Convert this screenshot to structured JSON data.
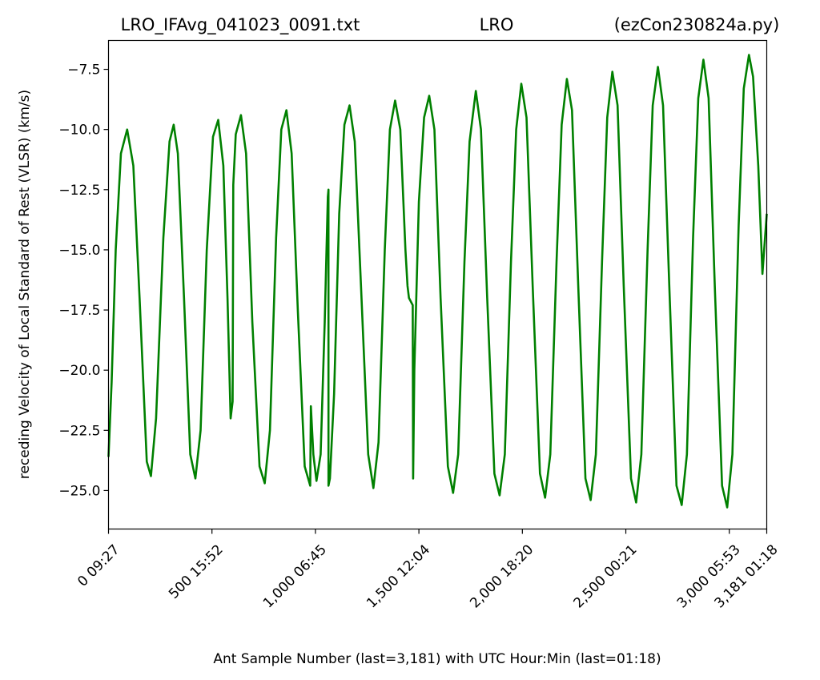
{
  "chart_data": {
    "type": "line",
    "title_left": "LRO_IFAvg_041023_0091.txt",
    "title_center": "LRO",
    "title_right": "(ezCon230824a.py)",
    "xlabel": "Ant Sample Number (last=3,181) with UTC Hour:Min (last=01:18)",
    "ylabel": "receding Velocity of Local Standard of Rest (VLSR) (km/s)",
    "xlim": [
      0,
      3181
    ],
    "ylim": [
      -26.6,
      -6.3
    ],
    "grid": false,
    "line_color": "#008000",
    "yticks": [
      {
        "value": -7.5,
        "label": "−7.5"
      },
      {
        "value": -10.0,
        "label": "−10.0"
      },
      {
        "value": -12.5,
        "label": "−12.5"
      },
      {
        "value": -15.0,
        "label": "−15.0"
      },
      {
        "value": -17.5,
        "label": "−17.5"
      },
      {
        "value": -20.0,
        "label": "−20.0"
      },
      {
        "value": -22.5,
        "label": "−22.5"
      },
      {
        "value": -25.0,
        "label": "−25.0"
      }
    ],
    "xticks": [
      {
        "value": 0,
        "label": "0  09:27"
      },
      {
        "value": 500,
        "label": "500  15:52"
      },
      {
        "value": 1000,
        "label": "1,000  06:45"
      },
      {
        "value": 1500,
        "label": "1,500  12:04"
      },
      {
        "value": 2000,
        "label": "2,000  18:20"
      },
      {
        "value": 2500,
        "label": "2,500  00:21"
      },
      {
        "value": 3000,
        "label": "3,000  05:53"
      },
      {
        "value": 3181,
        "label": "3,181  01:18"
      }
    ],
    "series": [
      {
        "values": [
          [
            0,
            -23.6
          ],
          [
            15,
            -20.5
          ],
          [
            35,
            -15.0
          ],
          [
            60,
            -11.0
          ],
          [
            90,
            -10.0
          ],
          [
            120,
            -11.5
          ],
          [
            150,
            -17.0
          ],
          [
            185,
            -23.8
          ],
          [
            205,
            -24.4
          ],
          [
            230,
            -22.0
          ],
          [
            265,
            -14.5
          ],
          [
            295,
            -10.5
          ],
          [
            315,
            -9.8
          ],
          [
            335,
            -11.0
          ],
          [
            365,
            -17.0
          ],
          [
            395,
            -23.5
          ],
          [
            420,
            -24.5
          ],
          [
            445,
            -22.5
          ],
          [
            475,
            -15.0
          ],
          [
            505,
            -10.3
          ],
          [
            530,
            -9.6
          ],
          [
            555,
            -11.5
          ],
          [
            575,
            -17.0
          ],
          [
            590,
            -22.0
          ],
          [
            600,
            -21.3
          ],
          [
            603,
            -12.3
          ],
          [
            615,
            -10.2
          ],
          [
            640,
            -9.4
          ],
          [
            665,
            -11.0
          ],
          [
            695,
            -18.0
          ],
          [
            730,
            -24.0
          ],
          [
            755,
            -24.7
          ],
          [
            780,
            -22.5
          ],
          [
            810,
            -14.5
          ],
          [
            835,
            -10.0
          ],
          [
            860,
            -9.2
          ],
          [
            885,
            -11.0
          ],
          [
            915,
            -17.5
          ],
          [
            948,
            -24.0
          ],
          [
            975,
            -24.8
          ],
          [
            978,
            -21.5
          ],
          [
            990,
            -23.5
          ],
          [
            1005,
            -24.6
          ],
          [
            1025,
            -23.5
          ],
          [
            1045,
            -18.0
          ],
          [
            1060,
            -12.8
          ],
          [
            1063,
            -12.5
          ],
          [
            1063,
            -24.8
          ],
          [
            1070,
            -24.5
          ],
          [
            1090,
            -21.0
          ],
          [
            1115,
            -13.5
          ],
          [
            1140,
            -9.8
          ],
          [
            1165,
            -9.0
          ],
          [
            1190,
            -10.5
          ],
          [
            1220,
            -16.5
          ],
          [
            1255,
            -23.5
          ],
          [
            1280,
            -24.9
          ],
          [
            1305,
            -23.0
          ],
          [
            1335,
            -15.0
          ],
          [
            1360,
            -10.0
          ],
          [
            1385,
            -8.8
          ],
          [
            1410,
            -10.0
          ],
          [
            1435,
            -15.0
          ],
          [
            1445,
            -16.5
          ],
          [
            1452,
            -17.0
          ],
          [
            1470,
            -17.3
          ],
          [
            1472,
            -24.5
          ],
          [
            1478,
            -20.0
          ],
          [
            1500,
            -13.0
          ],
          [
            1525,
            -9.5
          ],
          [
            1550,
            -8.6
          ],
          [
            1575,
            -10.0
          ],
          [
            1605,
            -17.0
          ],
          [
            1640,
            -24.0
          ],
          [
            1665,
            -25.1
          ],
          [
            1690,
            -23.5
          ],
          [
            1720,
            -15.5
          ],
          [
            1745,
            -10.5
          ],
          [
            1775,
            -8.4
          ],
          [
            1800,
            -10.0
          ],
          [
            1830,
            -17.0
          ],
          [
            1865,
            -24.3
          ],
          [
            1890,
            -25.2
          ],
          [
            1915,
            -23.5
          ],
          [
            1945,
            -15.5
          ],
          [
            1970,
            -10.0
          ],
          [
            1995,
            -8.1
          ],
          [
            2020,
            -9.5
          ],
          [
            2050,
            -16.5
          ],
          [
            2085,
            -24.3
          ],
          [
            2110,
            -25.3
          ],
          [
            2135,
            -23.5
          ],
          [
            2165,
            -15.5
          ],
          [
            2190,
            -9.8
          ],
          [
            2215,
            -7.9
          ],
          [
            2240,
            -9.2
          ],
          [
            2270,
            -16.5
          ],
          [
            2305,
            -24.5
          ],
          [
            2330,
            -25.4
          ],
          [
            2355,
            -23.5
          ],
          [
            2385,
            -15.5
          ],
          [
            2410,
            -9.5
          ],
          [
            2435,
            -7.6
          ],
          [
            2460,
            -9.0
          ],
          [
            2490,
            -16.5
          ],
          [
            2525,
            -24.5
          ],
          [
            2550,
            -25.5
          ],
          [
            2575,
            -23.5
          ],
          [
            2605,
            -15.0
          ],
          [
            2630,
            -9.0
          ],
          [
            2655,
            -7.4
          ],
          [
            2680,
            -9.0
          ],
          [
            2710,
            -16.5
          ],
          [
            2745,
            -24.8
          ],
          [
            2770,
            -25.6
          ],
          [
            2795,
            -23.5
          ],
          [
            2825,
            -14.5
          ],
          [
            2850,
            -8.7
          ],
          [
            2875,
            -7.1
          ],
          [
            2900,
            -8.7
          ],
          [
            2930,
            -16.5
          ],
          [
            2965,
            -24.8
          ],
          [
            2990,
            -25.7
          ],
          [
            3015,
            -23.5
          ],
          [
            3045,
            -14.0
          ],
          [
            3070,
            -8.3
          ],
          [
            3095,
            -6.9
          ],
          [
            3115,
            -7.8
          ],
          [
            3140,
            -11.5
          ],
          [
            3160,
            -16.0
          ],
          [
            3181,
            -13.5
          ]
        ]
      }
    ]
  }
}
